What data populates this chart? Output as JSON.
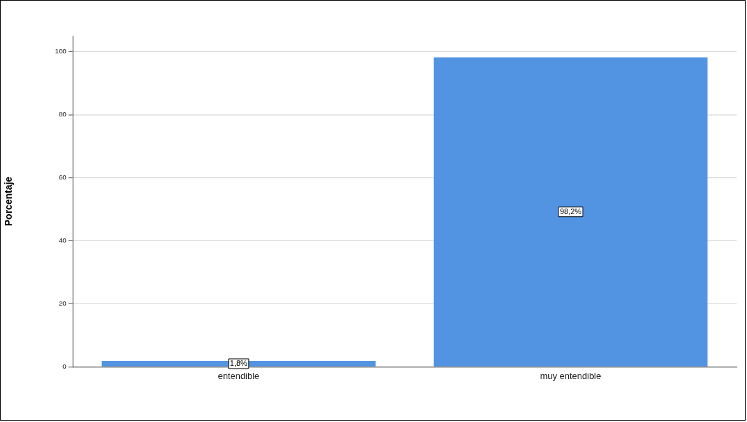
{
  "chart_data": {
    "type": "bar",
    "ylabel": "Porcentaje",
    "categories": [
      "entendible",
      "muy entendible"
    ],
    "values": [
      1.8,
      98.2
    ],
    "value_labels": [
      "1,8%",
      "98,2%"
    ],
    "color": "#5294e2",
    "ylim": [
      0,
      105
    ],
    "yticks": [
      0,
      20,
      40,
      60,
      80,
      100
    ],
    "grid": "y",
    "legend": false
  }
}
